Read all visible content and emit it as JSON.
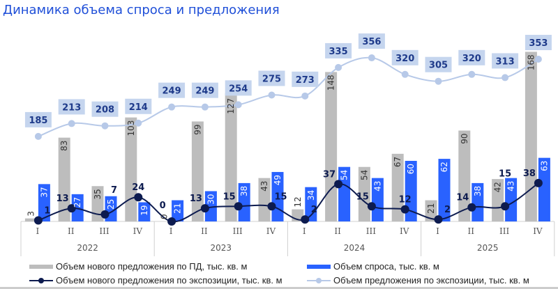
{
  "chart_data": {
    "type": "bar+line",
    "title": "Динамика объема спроса и предложения",
    "quarters": [
      "I",
      "II",
      "III",
      "IV",
      "I",
      "II",
      "III",
      "IV",
      "I",
      "II",
      "III",
      "IV",
      "I",
      "II",
      "III",
      "IV"
    ],
    "years": [
      "2022",
      "2023",
      "2024",
      "2025"
    ],
    "series": [
      {
        "name": "Объем нового предложения по ПД, тыс. кв. м",
        "type": "bar",
        "color": "#bdbdbd",
        "values": [
          3,
          83,
          35,
          103,
          0,
          99,
          127,
          43,
          12,
          148,
          54,
          67,
          21,
          90,
          42,
          168
        ]
      },
      {
        "name": "Объем спроса, тыс. кв. м",
        "type": "bar",
        "color": "#2962ff",
        "values": [
          37,
          27,
          25,
          19,
          21,
          30,
          38,
          49,
          34,
          54,
          43,
          60,
          62,
          38,
          43,
          63
        ]
      },
      {
        "name": "Объем нового предложения по экспозиции, тыс. кв. м",
        "type": "line",
        "color": "#0d1b4f",
        "values": [
          1,
          13,
          7,
          24,
          0,
          13,
          15,
          15,
          2,
          37,
          15,
          12,
          2,
          14,
          15,
          38
        ]
      },
      {
        "name": "Объем предложения по экспозиции, тыс. кв. м",
        "type": "line",
        "axis": "secondary",
        "color": "#b7c9e8",
        "values": [
          185,
          213,
          208,
          214,
          249,
          249,
          254,
          275,
          273,
          335,
          356,
          320,
          305,
          320,
          313,
          353
        ]
      }
    ],
    "legend": "bottom",
    "grid": false
  }
}
